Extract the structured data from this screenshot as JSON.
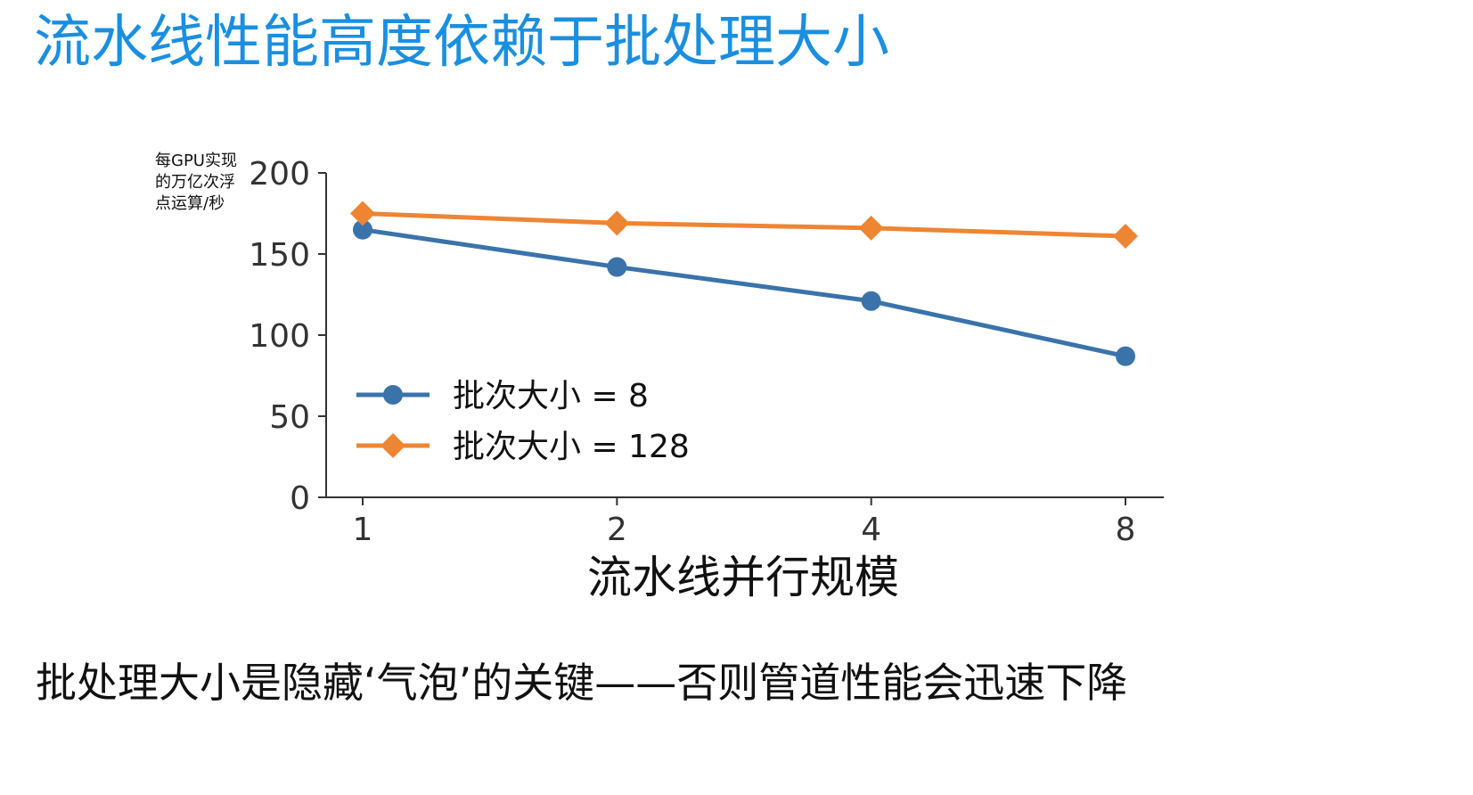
{
  "slide": {
    "title": "流水线性能高度依赖于批处理大小",
    "caption": "批处理大小是隐藏‘气泡’的关键——否则管道性能会迅速下降"
  },
  "colors": {
    "title": "#1a8fe0",
    "series_small_batch": "#3a73aa",
    "series_large_batch": "#ee8533",
    "axis": "#333333"
  },
  "chart_data": {
    "type": "line",
    "title": "",
    "xlabel": "流水线并行规模",
    "ylabel_lines": [
      "每GPU实现",
      "的万亿次浮",
      "点运算/秒"
    ],
    "x": [
      1,
      2,
      4,
      8
    ],
    "x_tick_labels": [
      "1",
      "2",
      "4",
      "8"
    ],
    "x_scale": "log2",
    "ylim": [
      0,
      200
    ],
    "y_ticks": [
      0,
      50,
      100,
      150,
      200
    ],
    "y_tick_labels": [
      "0",
      "50",
      "100",
      "150",
      "200"
    ],
    "grid": false,
    "legend_position": "lower-left",
    "series": [
      {
        "name": "批次大小 = 8",
        "marker": "circle",
        "color": "#3a73aa",
        "values": [
          165,
          142,
          121,
          87
        ]
      },
      {
        "name": "批次大小 = 128",
        "marker": "diamond",
        "color": "#ee8533",
        "values": [
          175,
          169,
          166,
          161
        ]
      }
    ]
  }
}
